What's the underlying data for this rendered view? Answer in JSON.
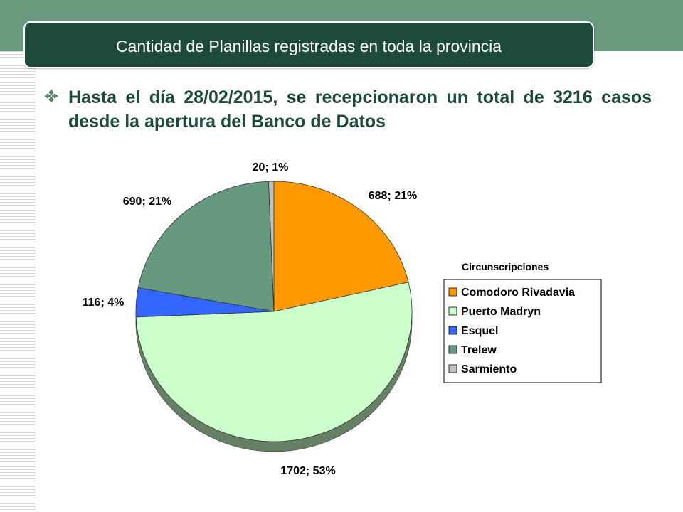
{
  "slide": {
    "title": "Cantidad de Planillas registradas en toda la provincia",
    "headline": "Hasta el día 28/02/2015, se recepcionaron un total de 3216 casos desde la apertura del Banco de Datos",
    "bullet_icon": "diamond-bullet-icon"
  },
  "colors": {
    "accent_dark": "#1d4a3b",
    "band": "#6a9a7e"
  },
  "chart_data": {
    "type": "pie",
    "legend_title": "Circunscripciones",
    "legend_position": "right",
    "slices": [
      {
        "name": "Comodoro Rivadavia",
        "value": 688,
        "label": "688; 21%",
        "color": "#ff9900"
      },
      {
        "name": "Puerto Madryn",
        "value": 1702,
        "label": "1702; 53%",
        "color": "#ccffcc"
      },
      {
        "name": "Esquel",
        "value": 116,
        "label": "116; 4%",
        "color": "#3366ff"
      },
      {
        "name": "Trelew",
        "value": 690,
        "label": "690; 21%",
        "color": "#669980"
      },
      {
        "name": "Sarmiento",
        "value": 20,
        "label": "20; 1%",
        "color": "#c0c0c0"
      }
    ]
  }
}
